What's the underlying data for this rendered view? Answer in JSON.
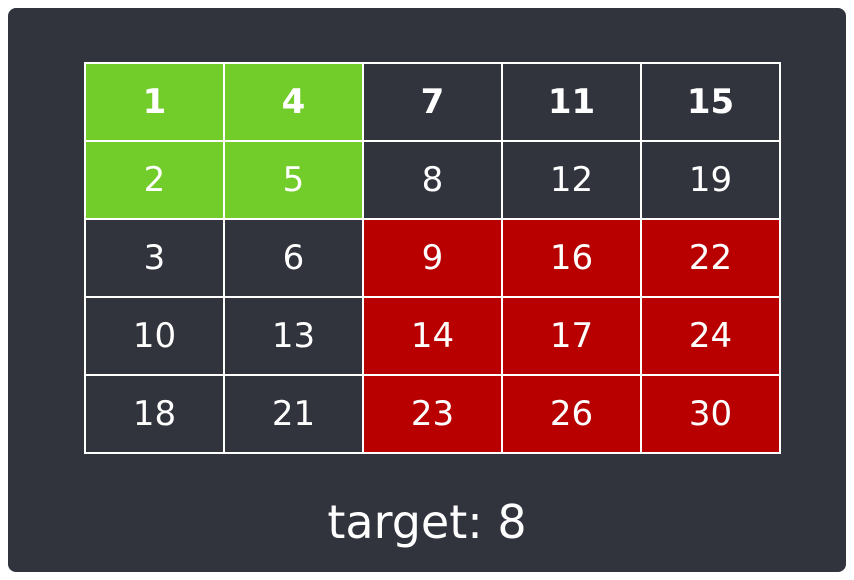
{
  "grid": {
    "rows": [
      [
        "1",
        "4",
        "7",
        "11",
        "15"
      ],
      [
        "2",
        "5",
        "8",
        "12",
        "19"
      ],
      [
        "3",
        "6",
        "9",
        "16",
        "22"
      ],
      [
        "10",
        "13",
        "14",
        "17",
        "24"
      ],
      [
        "18",
        "21",
        "23",
        "26",
        "30"
      ]
    ],
    "highlight_colors": {
      "background": "#31333d",
      "green": "#72cc2a",
      "red": "#b80000",
      "grid_line": "#ffffff"
    },
    "cell_states": [
      [
        "green-bold",
        "green-bold",
        "bold",
        "bold",
        "bold"
      ],
      [
        "green",
        "green",
        "plain",
        "plain",
        "plain"
      ],
      [
        "plain",
        "plain",
        "red",
        "red",
        "red"
      ],
      [
        "plain",
        "plain",
        "red",
        "red",
        "red"
      ],
      [
        "plain",
        "plain",
        "red",
        "red",
        "red"
      ]
    ]
  },
  "target_label": "target: 8"
}
